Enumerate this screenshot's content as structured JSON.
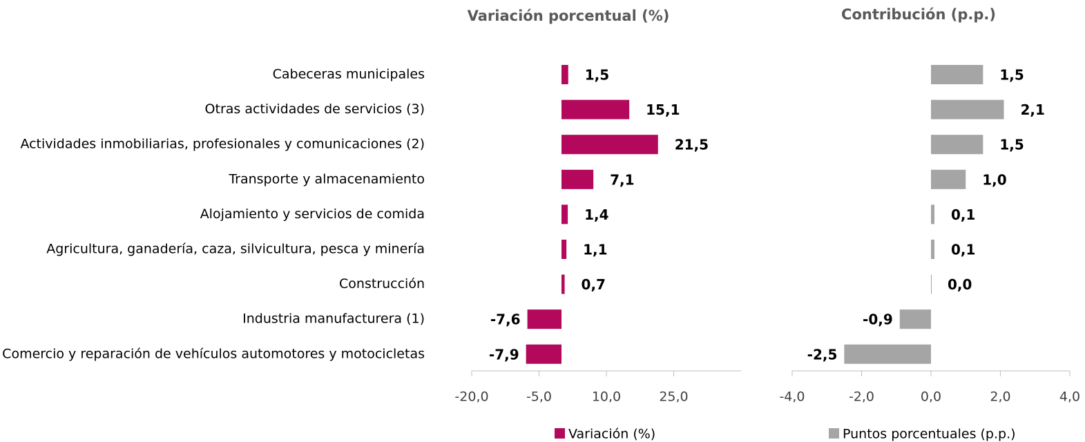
{
  "chart_data": [
    {
      "type": "bar",
      "orientation": "horizontal",
      "title": "Variación porcentual (%)",
      "categories": [
        "Cabeceras municipales",
        "Otras actividades de servicios (3)",
        "Actividades inmobiliarias, profesionales y comunicaciones (2)",
        "Transporte y almacenamiento",
        "Alojamiento y servicios de comida",
        "Agricultura, ganadería, caza, silvicultura, pesca y minería",
        "Construcción",
        "Industria manufacturera (1)",
        "Comercio y reparación de vehículos automotores y motocicletas"
      ],
      "series": [
        {
          "name": "Variación (%)",
          "color": "#b3085c",
          "values": [
            1.5,
            15.1,
            21.5,
            7.1,
            1.4,
            1.1,
            0.7,
            -7.6,
            -7.9
          ],
          "value_labels": [
            "1,5",
            "15,1",
            "21,5",
            "7,1",
            "1,4",
            "1,1",
            "0,7",
            "-7,6",
            "-7,9"
          ]
        }
      ],
      "xlim": [
        -20,
        40
      ],
      "xticks": [
        {
          "value": -20,
          "label": "-20,0"
        },
        {
          "value": -5,
          "label": "-5,0"
        },
        {
          "value": 10,
          "label": "10,0"
        },
        {
          "value": 25,
          "label": "25,0"
        }
      ],
      "legend": "bottom"
    },
    {
      "type": "bar",
      "orientation": "horizontal",
      "title": "Contribución (p.p.)",
      "series": [
        {
          "name": "Puntos porcentuales (p.p.)",
          "color": "#a5a5a5",
          "values": [
            1.5,
            2.1,
            1.5,
            1.0,
            0.1,
            0.1,
            0.0,
            -0.9,
            -2.5
          ],
          "value_labels": [
            "1,5",
            "2,1",
            "1,5",
            "1,0",
            "0,1",
            "0,1",
            "0,0",
            "-0,9",
            "-2,5"
          ]
        }
      ],
      "xlim": [
        -4,
        4
      ],
      "xticks": [
        {
          "value": -4,
          "label": "-4,0"
        },
        {
          "value": -2,
          "label": "-2,0"
        },
        {
          "value": 0,
          "label": "0,0"
        },
        {
          "value": 2,
          "label": "2,0"
        },
        {
          "value": 4,
          "label": "4,0"
        }
      ],
      "legend": "bottom"
    }
  ]
}
